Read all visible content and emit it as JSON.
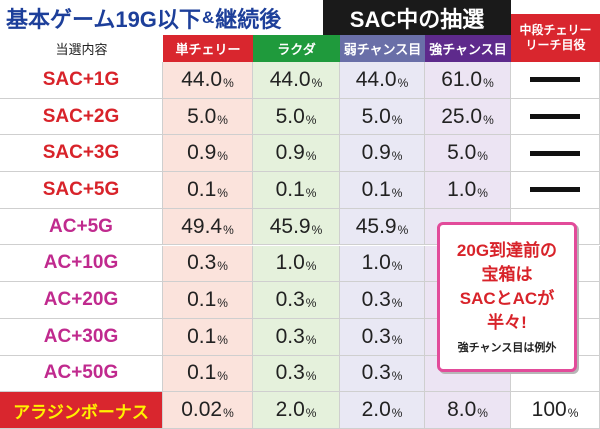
{
  "title": {
    "left_main": "基本ゲーム19G以下",
    "left_amp": "&",
    "left_tail": "継続後",
    "right": "SAC中の抽選"
  },
  "headers": {
    "label": "当選内容",
    "c1": "単チェリー",
    "c2": "ラクダ",
    "c3": "弱チャンス目",
    "c4": "強チャンス目",
    "c5_line1": "中段チェリー",
    "c5_line2": "リーチ目役"
  },
  "rows": [
    {
      "name": "SAC+1G",
      "values": [
        "44.0",
        "44.0",
        "44.0",
        "61.0"
      ],
      "last": "dash"
    },
    {
      "name": "SAC+2G",
      "values": [
        "5.0",
        "5.0",
        "5.0",
        "25.0"
      ],
      "last": "dash"
    },
    {
      "name": "SAC+3G",
      "values": [
        "0.9",
        "0.9",
        "0.9",
        "5.0"
      ],
      "last": "dash"
    },
    {
      "name": "SAC+5G",
      "values": [
        "0.1",
        "0.1",
        "0.1",
        "1.0"
      ],
      "last": "dash"
    },
    {
      "name": "AC+5G",
      "values": [
        "49.4",
        "45.9",
        "45.9",
        ""
      ],
      "last": ""
    },
    {
      "name": "AC+10G",
      "values": [
        "0.3",
        "1.0",
        "1.0",
        ""
      ],
      "last": ""
    },
    {
      "name": "AC+20G",
      "values": [
        "0.1",
        "0.3",
        "0.3",
        ""
      ],
      "last": ""
    },
    {
      "name": "AC+30G",
      "values": [
        "0.1",
        "0.3",
        "0.3",
        ""
      ],
      "last": ""
    },
    {
      "name": "AC+50G",
      "values": [
        "0.1",
        "0.3",
        "0.3",
        ""
      ],
      "last": ""
    },
    {
      "name": "アラジンボーナス",
      "values": [
        "0.02",
        "2.0",
        "2.0",
        "8.0"
      ],
      "last": "100"
    }
  ],
  "percent_sign": "%",
  "callout": {
    "line1": "20G到達前の",
    "line2": "宝箱は",
    "line3": "SACとACが",
    "line4": "半々!",
    "note": "強チャンス目は例外"
  }
}
